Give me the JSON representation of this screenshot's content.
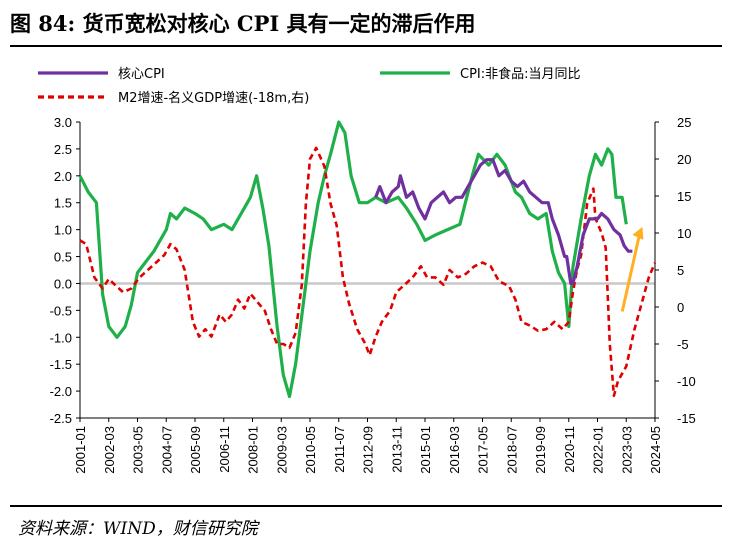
{
  "figure": {
    "title": "图 84:  货币宽松对核心 CPI 具有一定的滞后作用",
    "source": "资料来源：WIND，财信研究院"
  },
  "colors": {
    "core_cpi": "#7030A0",
    "cpi_nonfood": "#1FB04A",
    "m2_gap": "#E00000",
    "arrow": "#FFB020",
    "zero_line": "#C8C8C8"
  },
  "chart_data": {
    "type": "line",
    "x_ticks": [
      "2001-01",
      "2002-03",
      "2003-05",
      "2004-07",
      "2005-09",
      "2006-11",
      "2008-01",
      "2009-03",
      "2010-05",
      "2011-07",
      "2012-09",
      "2013-11",
      "2015-01",
      "2016-03",
      "2017-05",
      "2018-07",
      "2019-09",
      "2020-11",
      "2022-01",
      "2023-03",
      "2024-05"
    ],
    "y_left": {
      "min": -2.5,
      "max": 3.0,
      "ticks": [
        "3.0",
        "2.5",
        "2.0",
        "1.5",
        "1.0",
        "0.5",
        "0.0",
        "-0.5",
        "-1.0",
        "-1.5",
        "-2.0",
        "-2.5"
      ]
    },
    "y_right": {
      "min": -15,
      "max": 25,
      "ticks": [
        "25",
        "20",
        "15",
        "10",
        "5",
        "0",
        "-5",
        "-10",
        "-15"
      ]
    },
    "annotation": {
      "type": "arrow",
      "from": [
        "2023-03",
        0.0
      ],
      "to": [
        "2023-06",
        0.4
      ]
    },
    "series": [
      {
        "name": "核心CPI",
        "axis": "left",
        "points": [
          [
            "2013-01",
            1.6
          ],
          [
            "2013-03",
            1.8
          ],
          [
            "2013-06",
            1.5
          ],
          [
            "2013-09",
            1.7
          ],
          [
            "2013-12",
            1.8
          ],
          [
            "2014-01",
            2.0
          ],
          [
            "2014-04",
            1.6
          ],
          [
            "2014-07",
            1.7
          ],
          [
            "2014-10",
            1.4
          ],
          [
            "2015-01",
            1.2
          ],
          [
            "2015-04",
            1.5
          ],
          [
            "2015-07",
            1.6
          ],
          [
            "2015-10",
            1.7
          ],
          [
            "2016-01",
            1.5
          ],
          [
            "2016-04",
            1.6
          ],
          [
            "2016-07",
            1.6
          ],
          [
            "2016-10",
            1.8
          ],
          [
            "2017-01",
            2.0
          ],
          [
            "2017-04",
            2.2
          ],
          [
            "2017-07",
            2.3
          ],
          [
            "2017-10",
            2.3
          ],
          [
            "2018-01",
            2.0
          ],
          [
            "2018-04",
            2.1
          ],
          [
            "2018-07",
            1.9
          ],
          [
            "2018-10",
            1.8
          ],
          [
            "2019-01",
            1.9
          ],
          [
            "2019-04",
            1.7
          ],
          [
            "2019-07",
            1.6
          ],
          [
            "2019-10",
            1.5
          ],
          [
            "2020-01",
            1.5
          ],
          [
            "2020-03",
            1.2
          ],
          [
            "2020-06",
            0.9
          ],
          [
            "2020-09",
            0.5
          ],
          [
            "2020-10",
            0.5
          ],
          [
            "2020-12",
            0.0
          ],
          [
            "2021-01",
            0.0
          ],
          [
            "2021-03",
            0.3
          ],
          [
            "2021-06",
            0.9
          ],
          [
            "2021-09",
            1.2
          ],
          [
            "2021-12",
            1.2
          ],
          [
            "2022-01",
            1.2
          ],
          [
            "2022-03",
            1.3
          ],
          [
            "2022-06",
            1.2
          ],
          [
            "2022-09",
            1.0
          ],
          [
            "2022-12",
            0.9
          ],
          [
            "2023-02",
            0.7
          ],
          [
            "2023-04",
            0.6
          ],
          [
            "2023-06",
            0.6
          ]
        ]
      },
      {
        "name": "CPI:非食品:当月同比",
        "axis": "left",
        "points": [
          [
            "2001-01",
            2.0
          ],
          [
            "2001-05",
            1.7
          ],
          [
            "2001-09",
            1.5
          ],
          [
            "2001-12",
            -0.2
          ],
          [
            "2002-03",
            -0.8
          ],
          [
            "2002-07",
            -1.0
          ],
          [
            "2002-11",
            -0.8
          ],
          [
            "2003-02",
            -0.4
          ],
          [
            "2003-05",
            0.2
          ],
          [
            "2003-09",
            0.4
          ],
          [
            "2004-01",
            0.6
          ],
          [
            "2004-07",
            1.0
          ],
          [
            "2004-09",
            1.3
          ],
          [
            "2004-12",
            1.2
          ],
          [
            "2005-04",
            1.4
          ],
          [
            "2005-09",
            1.3
          ],
          [
            "2006-01",
            1.2
          ],
          [
            "2006-05",
            1.0
          ],
          [
            "2006-11",
            1.1
          ],
          [
            "2007-03",
            1.0
          ],
          [
            "2007-09",
            1.4
          ],
          [
            "2007-12",
            1.6
          ],
          [
            "2008-03",
            2.0
          ],
          [
            "2008-06",
            1.4
          ],
          [
            "2008-09",
            0.7
          ],
          [
            "2009-01",
            -0.8
          ],
          [
            "2009-04",
            -1.7
          ],
          [
            "2009-07",
            -2.1
          ],
          [
            "2009-10",
            -1.5
          ],
          [
            "2010-01",
            -0.6
          ],
          [
            "2010-05",
            0.6
          ],
          [
            "2010-09",
            1.5
          ],
          [
            "2010-12",
            2.0
          ],
          [
            "2011-03",
            2.4
          ],
          [
            "2011-07",
            3.0
          ],
          [
            "2011-10",
            2.8
          ],
          [
            "2012-01",
            2.0
          ],
          [
            "2012-05",
            1.5
          ],
          [
            "2012-09",
            1.5
          ],
          [
            "2013-01",
            1.6
          ],
          [
            "2013-06",
            1.5
          ],
          [
            "2013-12",
            1.6
          ],
          [
            "2014-04",
            1.4
          ],
          [
            "2014-09",
            1.1
          ],
          [
            "2015-01",
            0.8
          ],
          [
            "2015-06",
            0.9
          ],
          [
            "2015-12",
            1.0
          ],
          [
            "2016-06",
            1.1
          ],
          [
            "2016-12",
            2.0
          ],
          [
            "2017-03",
            2.4
          ],
          [
            "2017-08",
            2.2
          ],
          [
            "2017-12",
            2.4
          ],
          [
            "2018-04",
            2.2
          ],
          [
            "2018-09",
            1.7
          ],
          [
            "2018-12",
            1.6
          ],
          [
            "2019-04",
            1.3
          ],
          [
            "2019-08",
            1.2
          ],
          [
            "2019-12",
            1.3
          ],
          [
            "2020-03",
            0.6
          ],
          [
            "2020-06",
            0.2
          ],
          [
            "2020-09",
            0.0
          ],
          [
            "2020-11",
            -0.8
          ],
          [
            "2021-01",
            0.3
          ],
          [
            "2021-05",
            1.2
          ],
          [
            "2021-09",
            2.0
          ],
          [
            "2021-12",
            2.4
          ],
          [
            "2022-03",
            2.2
          ],
          [
            "2022-06",
            2.5
          ],
          [
            "2022-08",
            2.4
          ],
          [
            "2022-10",
            1.6
          ],
          [
            "2023-01",
            1.6
          ],
          [
            "2023-03",
            1.1
          ]
        ]
      },
      {
        "name": "M2增速-名义GDP增速(-18m,右)",
        "axis": "right",
        "points": [
          [
            "2001-01",
            9.0
          ],
          [
            "2001-04",
            8.5
          ],
          [
            "2001-08",
            4.0
          ],
          [
            "2001-12",
            2.5
          ],
          [
            "2002-03",
            3.8
          ],
          [
            "2002-06",
            3.0
          ],
          [
            "2002-10",
            2.0
          ],
          [
            "2003-02",
            2.5
          ],
          [
            "2003-06",
            4.0
          ],
          [
            "2003-10",
            5.0
          ],
          [
            "2004-02",
            6.0
          ],
          [
            "2004-06",
            7.0
          ],
          [
            "2004-09",
            8.5
          ],
          [
            "2004-12",
            7.8
          ],
          [
            "2005-04",
            5.0
          ],
          [
            "2005-08",
            -2.0
          ],
          [
            "2005-11",
            -4.0
          ],
          [
            "2006-02",
            -3.0
          ],
          [
            "2006-05",
            -4.0
          ],
          [
            "2006-09",
            -1.0
          ],
          [
            "2006-12",
            -2.0
          ],
          [
            "2007-03",
            -1.0
          ],
          [
            "2007-06",
            1.0
          ],
          [
            "2007-09",
            -0.2
          ],
          [
            "2007-12",
            1.8
          ],
          [
            "2008-03",
            0.8
          ],
          [
            "2008-07",
            -0.5
          ],
          [
            "2008-10",
            -3.0
          ],
          [
            "2009-01",
            -5.0
          ],
          [
            "2009-04",
            -5.0
          ],
          [
            "2009-07",
            -5.5
          ],
          [
            "2009-10",
            -3.5
          ],
          [
            "2010-01",
            3.0
          ],
          [
            "2010-03",
            14.0
          ],
          [
            "2010-05",
            20.0
          ],
          [
            "2010-08",
            21.5
          ],
          [
            "2010-12",
            19.0
          ],
          [
            "2011-03",
            14.0
          ],
          [
            "2011-06",
            11.0
          ],
          [
            "2011-09",
            4.0
          ],
          [
            "2011-12",
            0.5
          ],
          [
            "2012-04",
            -3.0
          ],
          [
            "2012-08",
            -5.0
          ],
          [
            "2012-10",
            -6.5
          ],
          [
            "2013-01",
            -4.0
          ],
          [
            "2013-04",
            -2.0
          ],
          [
            "2013-08",
            -0.5
          ],
          [
            "2013-11",
            2.0
          ],
          [
            "2014-03",
            3.0
          ],
          [
            "2014-07",
            4.0
          ],
          [
            "2014-11",
            5.5
          ],
          [
            "2015-02",
            4.0
          ],
          [
            "2015-06",
            4.0
          ],
          [
            "2015-10",
            3.0
          ],
          [
            "2016-01",
            5.0
          ],
          [
            "2016-05",
            4.0
          ],
          [
            "2016-09",
            4.5
          ],
          [
            "2017-01",
            5.5
          ],
          [
            "2017-05",
            6.0
          ],
          [
            "2017-09",
            5.5
          ],
          [
            "2018-01",
            3.5
          ],
          [
            "2018-06",
            2.8
          ],
          [
            "2018-09",
            1.0
          ],
          [
            "2018-12",
            -2.0
          ],
          [
            "2019-04",
            -2.5
          ],
          [
            "2019-08",
            -3.2
          ],
          [
            "2019-12",
            -3.0
          ],
          [
            "2020-04",
            -2.0
          ],
          [
            "2020-08",
            -3.0
          ],
          [
            "2020-11",
            -2.0
          ],
          [
            "2021-01",
            2.0
          ],
          [
            "2021-03",
            5.0
          ],
          [
            "2021-05",
            7.0
          ],
          [
            "2021-08",
            14.0
          ],
          [
            "2021-11",
            16.0
          ],
          [
            "2021-12",
            12.0
          ],
          [
            "2022-03",
            10.0
          ],
          [
            "2022-05",
            8.0
          ],
          [
            "2022-07",
            -5.0
          ],
          [
            "2022-09",
            -12.0
          ],
          [
            "2022-11",
            -10.0
          ],
          [
            "2023-03",
            -8.0
          ],
          [
            "2023-07",
            -3.0
          ],
          [
            "2023-11",
            1.0
          ],
          [
            "2024-02",
            4.0
          ],
          [
            "2024-05",
            6.0
          ]
        ]
      }
    ]
  }
}
